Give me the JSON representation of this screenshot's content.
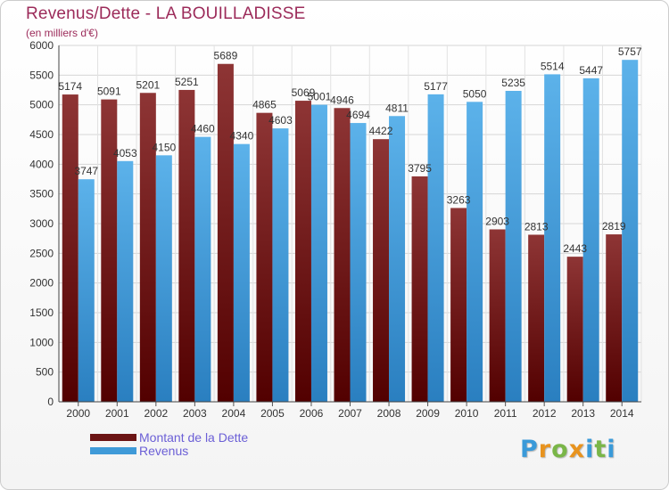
{
  "chart_data": {
    "type": "bar",
    "title": "Revenus/Dette - LA BOUILLADISSE",
    "subtitle": "(en milliers d'€)",
    "categories": [
      "2000",
      "2001",
      "2002",
      "2003",
      "2004",
      "2005",
      "2006",
      "2007",
      "2008",
      "2009",
      "2010",
      "2011",
      "2012",
      "2013",
      "2014"
    ],
    "series": [
      {
        "name": "Montant de la Dette",
        "values": [
          5174,
          5091,
          5201,
          5251,
          5689,
          4865,
          5069,
          4946,
          4422,
          3795,
          3263,
          2903,
          2813,
          2443,
          2819
        ],
        "labels": [
          "5174",
          "5091",
          "5201",
          "5251",
          "5689",
          "4865",
          "5069",
          "4946",
          "4422",
          "3795",
          "3263",
          "2903",
          "2813",
          "2443",
          "2819"
        ],
        "color": "#7a1f1f"
      },
      {
        "name": "Revenus",
        "values": [
          3747,
          4053,
          4150,
          4460,
          4340,
          4603,
          5001,
          4694,
          4811,
          5177,
          5050,
          5235,
          5514,
          5447,
          5757
        ],
        "labels": [
          "3747",
          "4053",
          "4150",
          "4460",
          "4340",
          "4603",
          "5001",
          "4694",
          "4811",
          "5177",
          "5050",
          "5235",
          "5514",
          "5447",
          "5757"
        ],
        "color": "#4aa3e0"
      }
    ],
    "ylim": [
      0,
      6000
    ],
    "yticks": [
      0,
      500,
      1000,
      1500,
      2000,
      2500,
      3000,
      3500,
      4000,
      4500,
      5000,
      5500,
      6000
    ],
    "grid": true,
    "legend": "bottom-left"
  },
  "logo": {
    "text": "Proxiti"
  }
}
